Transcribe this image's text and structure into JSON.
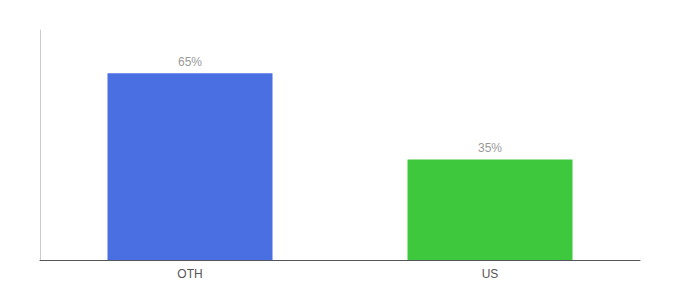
{
  "chart_data": {
    "type": "bar",
    "categories": [
      "OTH",
      "US"
    ],
    "values": [
      65,
      35
    ],
    "colors": [
      "#4A6FE3",
      "#3DC83D"
    ],
    "data_labels": true,
    "value_labels": [
      "65%",
      "35%"
    ],
    "ylim": [
      0,
      80
    ],
    "tick_labels": "x",
    "grid": false
  }
}
